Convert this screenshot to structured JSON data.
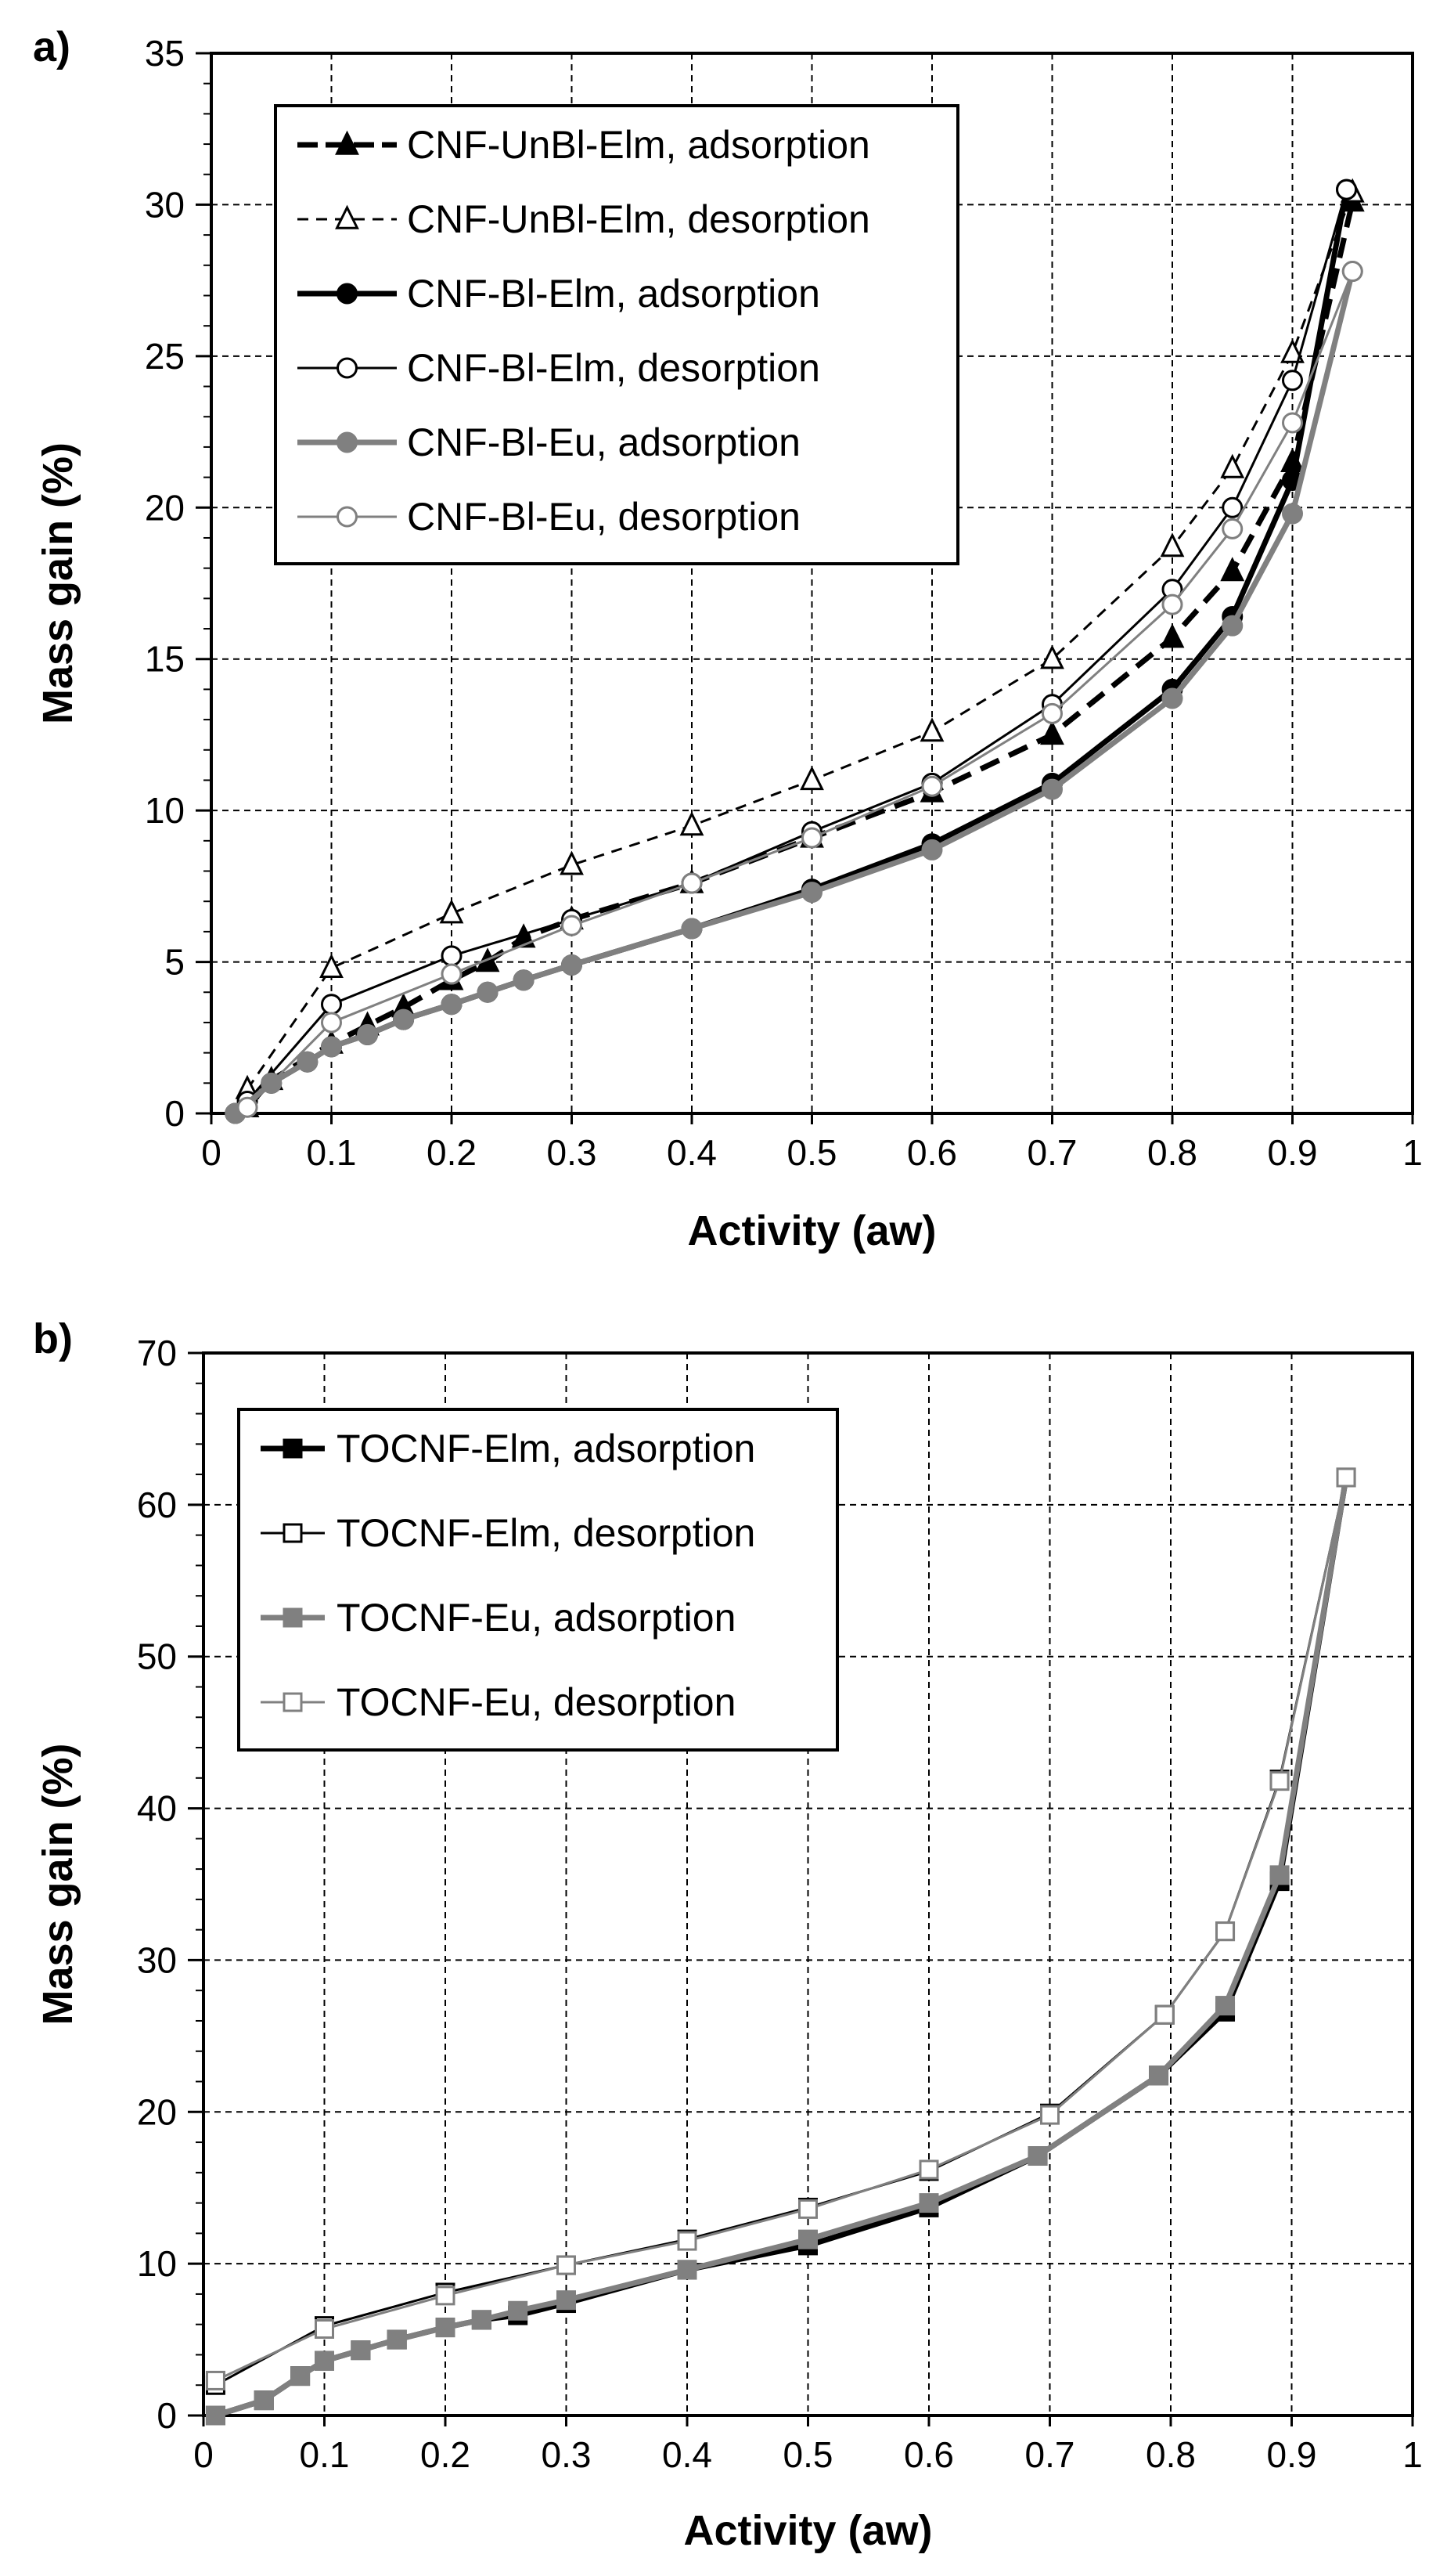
{
  "chart_data": [
    {
      "type": "line",
      "panel_label": "a)",
      "xlabel": "Activity (aw)",
      "ylabel": "Mass gain (%)",
      "xlim": [
        0,
        1
      ],
      "ylim": [
        0,
        35
      ],
      "xticks": [
        0,
        0.1,
        0.2,
        0.3,
        0.4,
        0.5,
        0.6,
        0.7,
        0.8,
        0.9,
        1
      ],
      "xtick_labels": [
        "0",
        "0.1",
        "0.2",
        "0.3",
        "0.4",
        "0.5",
        "0.6",
        "0.7",
        "0.8",
        "0.9",
        "1"
      ],
      "yticks": [
        0,
        5,
        10,
        15,
        20,
        25,
        30,
        35
      ],
      "ytick_labels": [
        "0",
        "5",
        "10",
        "15",
        "20",
        "25",
        "30",
        "35"
      ],
      "grid": true,
      "legend_position": "top-left",
      "series": [
        {
          "name": "CNF-UnBl-Elm, adsorption",
          "color": "#000000",
          "marker": "triangle",
          "filled": true,
          "dashed": true,
          "width": 7,
          "x": [
            0.03,
            0.05,
            0.1,
            0.13,
            0.16,
            0.2,
            0.23,
            0.26,
            0.3,
            0.4,
            0.5,
            0.6,
            0.7,
            0.8,
            0.85,
            0.9,
            0.95
          ],
          "y": [
            0.2,
            1.1,
            2.3,
            2.9,
            3.5,
            4.4,
            5.0,
            5.8,
            6.4,
            7.6,
            9.1,
            10.6,
            12.5,
            15.7,
            17.9,
            21.5,
            30.1
          ]
        },
        {
          "name": "CNF-UnBl-Elm, desorption",
          "color": "#000000",
          "marker": "triangle",
          "filled": false,
          "dashed": true,
          "width": 3,
          "x": [
            0.03,
            0.1,
            0.2,
            0.3,
            0.4,
            0.5,
            0.6,
            0.7,
            0.8,
            0.85,
            0.9,
            0.95
          ],
          "y": [
            0.8,
            4.8,
            6.6,
            8.2,
            9.5,
            11.0,
            12.6,
            15.0,
            18.7,
            21.3,
            25.1,
            30.4
          ]
        },
        {
          "name": "CNF-Bl-Elm, adsorption",
          "color": "#000000",
          "marker": "circle",
          "filled": true,
          "dashed": false,
          "width": 7,
          "x": [
            0.02,
            0.05,
            0.08,
            0.1,
            0.13,
            0.16,
            0.2,
            0.23,
            0.26,
            0.3,
            0.4,
            0.5,
            0.6,
            0.7,
            0.8,
            0.85,
            0.9,
            0.945
          ],
          "y": [
            0.0,
            1.0,
            1.7,
            2.2,
            2.6,
            3.1,
            3.6,
            4.0,
            4.4,
            4.9,
            6.1,
            7.4,
            8.9,
            10.9,
            14.0,
            16.4,
            20.9,
            30.5
          ]
        },
        {
          "name": "CNF-Bl-Elm, desorption",
          "color": "#000000",
          "marker": "circle",
          "filled": false,
          "dashed": false,
          "width": 3,
          "x": [
            0.03,
            0.1,
            0.2,
            0.3,
            0.4,
            0.5,
            0.6,
            0.7,
            0.8,
            0.85,
            0.9,
            0.945
          ],
          "y": [
            0.4,
            3.6,
            5.2,
            6.4,
            7.6,
            9.3,
            10.9,
            13.5,
            17.3,
            20.0,
            24.2,
            30.5
          ]
        },
        {
          "name": "CNF-Bl-Eu, adsorption",
          "color": "#808080",
          "marker": "circle",
          "filled": true,
          "dashed": false,
          "width": 7,
          "x": [
            0.02,
            0.05,
            0.08,
            0.1,
            0.13,
            0.16,
            0.2,
            0.23,
            0.26,
            0.3,
            0.4,
            0.5,
            0.6,
            0.7,
            0.8,
            0.85,
            0.9,
            0.95
          ],
          "y": [
            0.0,
            1.0,
            1.7,
            2.2,
            2.6,
            3.1,
            3.6,
            4.0,
            4.4,
            4.9,
            6.1,
            7.3,
            8.7,
            10.7,
            13.7,
            16.1,
            19.8,
            27.8
          ]
        },
        {
          "name": "CNF-Bl-Eu, desorption",
          "color": "#808080",
          "marker": "circle",
          "filled": false,
          "dashed": false,
          "width": 3,
          "x": [
            0.03,
            0.1,
            0.2,
            0.3,
            0.4,
            0.5,
            0.6,
            0.7,
            0.8,
            0.85,
            0.9,
            0.95
          ],
          "y": [
            0.2,
            3.0,
            4.6,
            6.2,
            7.6,
            9.1,
            10.8,
            13.2,
            16.8,
            19.3,
            22.8,
            27.8
          ]
        }
      ]
    },
    {
      "type": "line",
      "panel_label": "b)",
      "xlabel": "Activity (aw)",
      "ylabel": "Mass gain (%)",
      "xlim": [
        0,
        1
      ],
      "ylim": [
        0,
        70
      ],
      "xticks": [
        0,
        0.1,
        0.2,
        0.3,
        0.4,
        0.5,
        0.6,
        0.7,
        0.8,
        0.9,
        1
      ],
      "xtick_labels": [
        "0",
        "0.1",
        "0.2",
        "0.3",
        "0.4",
        "0.5",
        "0.6",
        "0.7",
        "0.8",
        "0.9",
        "1"
      ],
      "yticks": [
        0,
        10,
        20,
        30,
        40,
        50,
        60,
        70
      ],
      "ytick_labels": [
        "0",
        "10",
        "20",
        "30",
        "40",
        "50",
        "60",
        "70"
      ],
      "grid": true,
      "legend_position": "top-left",
      "series": [
        {
          "name": "TOCNF-Elm, adsorption",
          "color": "#000000",
          "marker": "square",
          "filled": true,
          "dashed": false,
          "width": 7,
          "x": [
            0.01,
            0.05,
            0.08,
            0.1,
            0.13,
            0.16,
            0.2,
            0.23,
            0.26,
            0.3,
            0.4,
            0.5,
            0.6,
            0.69,
            0.79,
            0.845,
            0.89,
            0.945
          ],
          "y": [
            0.0,
            1.0,
            2.6,
            3.6,
            4.3,
            5.0,
            5.8,
            6.3,
            6.6,
            7.4,
            9.6,
            11.2,
            13.7,
            17.1,
            22.4,
            26.6,
            35.2,
            61.8
          ]
        },
        {
          "name": "TOCNF-Elm, desorption",
          "color": "#000000",
          "marker": "square",
          "filled": false,
          "dashed": false,
          "width": 3,
          "x": [
            0.01,
            0.1,
            0.2,
            0.3,
            0.4,
            0.5,
            0.6,
            0.7,
            0.795,
            0.845,
            0.89,
            0.945
          ],
          "y": [
            2.0,
            5.9,
            8.1,
            9.9,
            11.6,
            13.7,
            16.1,
            19.9,
            26.4,
            31.9,
            41.9,
            61.8
          ]
        },
        {
          "name": "TOCNF-Eu, adsorption",
          "color": "#808080",
          "marker": "square",
          "filled": true,
          "dashed": false,
          "width": 7,
          "x": [
            0.01,
            0.05,
            0.08,
            0.1,
            0.13,
            0.16,
            0.2,
            0.23,
            0.26,
            0.3,
            0.4,
            0.5,
            0.6,
            0.69,
            0.79,
            0.845,
            0.89,
            0.945
          ],
          "y": [
            0.0,
            1.0,
            2.6,
            3.6,
            4.3,
            5.0,
            5.8,
            6.3,
            6.9,
            7.6,
            9.6,
            11.6,
            14.0,
            17.1,
            22.4,
            27.0,
            35.6,
            61.8
          ]
        },
        {
          "name": "TOCNF-Eu, desorption",
          "color": "#808080",
          "marker": "square",
          "filled": false,
          "dashed": false,
          "width": 3,
          "x": [
            0.01,
            0.1,
            0.2,
            0.3,
            0.4,
            0.5,
            0.6,
            0.7,
            0.795,
            0.845,
            0.89,
            0.945
          ],
          "y": [
            2.3,
            5.7,
            7.9,
            9.9,
            11.5,
            13.6,
            16.2,
            19.8,
            26.4,
            31.9,
            41.8,
            61.8
          ]
        }
      ]
    }
  ]
}
